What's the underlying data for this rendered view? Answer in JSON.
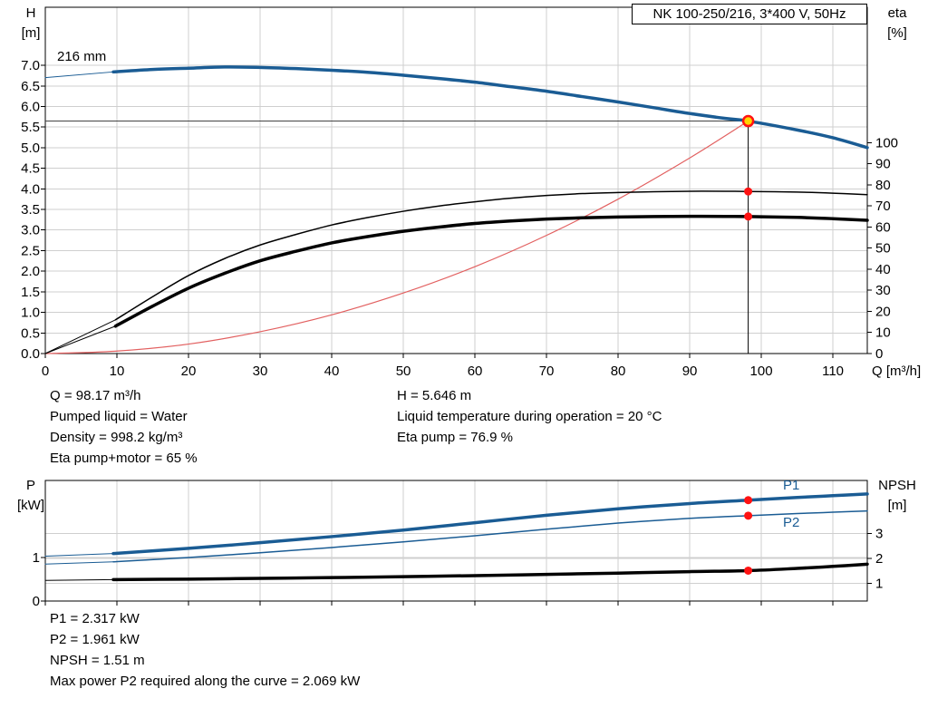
{
  "readouts_top": {
    "q": "Q = 98.17 m³/h",
    "pumped_liquid": "Pumped liquid = Water",
    "density": "Density = 998.2 kg/m³",
    "eta_pump_motor": "Eta pump+motor = 65 %",
    "h": "H = 5.646 m",
    "liquid_temp": "Liquid temperature during operation = 20 °C",
    "eta_pump": "Eta pump = 76.9 %"
  },
  "readouts_bottom": {
    "p1": "P1 = 2.317 kW",
    "p2": "P2 = 1.961 kW",
    "npsh": "NPSH = 1.51 m",
    "max_p2": "Max power P2 required along the curve = 2.069 kW"
  },
  "colors": {
    "curve_blue": "#1a5c94",
    "curve_black": "#000000",
    "duty_red": "#e26060",
    "dot_red": "#ff1212",
    "op_fill": "#ffd400",
    "grid": "#cfcfcf"
  },
  "chart_data": [
    {
      "type": "line",
      "title": "NK 100-250/216, 3*400 V, 50Hz",
      "impeller_label": "216 mm",
      "x_axis": {
        "label": "Q [m³/h]",
        "min": 0,
        "max": 114.8,
        "ticks": [
          0,
          10,
          20,
          30,
          40,
          50,
          60,
          70,
          80,
          90,
          100,
          110
        ]
      },
      "left_axis": {
        "title": "H",
        "unit": "[m]",
        "min": 0,
        "max": 8.41,
        "decimals": 1,
        "grid": true,
        "ticks": [
          0,
          0.5,
          1,
          1.5,
          2,
          2.5,
          3,
          3.5,
          4,
          4.5,
          5,
          5.5,
          6,
          6.5,
          7
        ]
      },
      "right_axis": {
        "title": "eta",
        "unit": "[%]",
        "min": 0,
        "max": 164.3,
        "decimals": 0,
        "grid": false,
        "ticks": [
          0,
          10,
          20,
          30,
          40,
          50,
          60,
          70,
          80,
          90,
          100
        ]
      },
      "operating_point": {
        "q": 98.17,
        "h": 5.646,
        "eta_pump": 76.9,
        "eta_pump_motor": 65
      },
      "series": [
        {
          "name": "head-curve-lead",
          "axis": "left",
          "color": "#1a5c94",
          "w": 1,
          "points": [
            [
              0,
              6.7
            ],
            [
              9.5,
              6.84
            ]
          ]
        },
        {
          "name": "head-curve",
          "axis": "left",
          "color": "#1a5c94",
          "w": 3.5,
          "points": [
            [
              9.5,
              6.84
            ],
            [
              15,
              6.9
            ],
            [
              20,
              6.93
            ],
            [
              25,
              6.96
            ],
            [
              30,
              6.95
            ],
            [
              35,
              6.92
            ],
            [
              40,
              6.88
            ],
            [
              45,
              6.83
            ],
            [
              50,
              6.76
            ],
            [
              55,
              6.68
            ],
            [
              60,
              6.59
            ],
            [
              65,
              6.48
            ],
            [
              70,
              6.37
            ],
            [
              75,
              6.24
            ],
            [
              80,
              6.11
            ],
            [
              85,
              5.97
            ],
            [
              90,
              5.83
            ],
            [
              95,
              5.71
            ],
            [
              98.17,
              5.646
            ],
            [
              105,
              5.43
            ],
            [
              110,
              5.24
            ],
            [
              114.8,
              5.0
            ]
          ]
        },
        {
          "name": "duty-curve",
          "axis": "left",
          "color": "#e26060",
          "w": 1.2,
          "points": [
            [
              0,
              0
            ],
            [
              10,
              0.06
            ],
            [
              20,
              0.23
            ],
            [
              30,
              0.53
            ],
            [
              40,
              0.94
            ],
            [
              50,
              1.47
            ],
            [
              60,
              2.11
            ],
            [
              70,
              2.87
            ],
            [
              80,
              3.75
            ],
            [
              90,
              4.75
            ],
            [
              98.17,
              5.646
            ]
          ]
        },
        {
          "name": "eta-pump-lead",
          "axis": "right",
          "color": "#000000",
          "w": 1,
          "points": [
            [
              0,
              0
            ],
            [
              9.8,
              16
            ]
          ]
        },
        {
          "name": "eta-pump-curve",
          "axis": "right",
          "color": "#000000",
          "w": 1.5,
          "points": [
            [
              9.8,
              16
            ],
            [
              15,
              27
            ],
            [
              20,
              37
            ],
            [
              25,
              45
            ],
            [
              30,
              51.5
            ],
            [
              35,
              56.5
            ],
            [
              40,
              61
            ],
            [
              45,
              64.5
            ],
            [
              50,
              67.5
            ],
            [
              55,
              70
            ],
            [
              60,
              72
            ],
            [
              65,
              73.7
            ],
            [
              70,
              75
            ],
            [
              75,
              75.9
            ],
            [
              80,
              76.4
            ],
            [
              85,
              76.8
            ],
            [
              90,
              77
            ],
            [
              95,
              77
            ],
            [
              98.17,
              76.9
            ],
            [
              105,
              76.6
            ],
            [
              110,
              76.1
            ],
            [
              114.8,
              75.4
            ]
          ]
        },
        {
          "name": "eta-pump-motor-lead",
          "axis": "right",
          "color": "#000000",
          "w": 1,
          "points": [
            [
              0,
              0
            ],
            [
              9.8,
              13
            ]
          ]
        },
        {
          "name": "eta-pump-motor-curve",
          "axis": "right",
          "color": "#000000",
          "w": 3.5,
          "points": [
            [
              9.8,
              13
            ],
            [
              15,
              22.5
            ],
            [
              20,
              31
            ],
            [
              25,
              38
            ],
            [
              30,
              44
            ],
            [
              35,
              48.5
            ],
            [
              40,
              52.5
            ],
            [
              45,
              55.5
            ],
            [
              50,
              58
            ],
            [
              55,
              60
            ],
            [
              60,
              61.7
            ],
            [
              65,
              62.9
            ],
            [
              70,
              63.8
            ],
            [
              75,
              64.4
            ],
            [
              80,
              64.8
            ],
            [
              85,
              65
            ],
            [
              90,
              65.1
            ],
            [
              95,
              65.05
            ],
            [
              98.17,
              65
            ],
            [
              105,
              64.6
            ],
            [
              110,
              64
            ],
            [
              114.8,
              63.2
            ]
          ]
        }
      ],
      "ref_lines": [
        {
          "dir": "h",
          "v": 5.646,
          "axis": "left",
          "x0": 0,
          "x1": 98.17,
          "color": "#444444",
          "w": 1
        },
        {
          "dir": "v",
          "x": 98.17,
          "axis": "left",
          "v0": 0,
          "v1": 5.646,
          "color": "#000000",
          "w": 1
        }
      ],
      "markers": [
        {
          "name": "operating-point",
          "x": 98.17,
          "v": 5.646,
          "axis": "left",
          "r": 5.5,
          "fill": "#ffd400",
          "stroke": "#ff1212",
          "sw": 2.5
        },
        {
          "name": "eta-pump-point",
          "x": 98.17,
          "v": 76.9,
          "axis": "right",
          "r": 4.5,
          "fill": "#ff1212"
        },
        {
          "name": "eta-pump-motor-point",
          "x": 98.17,
          "v": 65,
          "axis": "right",
          "r": 4.5,
          "fill": "#ff1212"
        }
      ]
    },
    {
      "type": "line",
      "x_axis": {
        "label": "",
        "min": 0,
        "max": 114.8,
        "ticks": [
          0,
          10,
          20,
          30,
          40,
          50,
          60,
          70,
          80,
          90,
          100,
          110
        ]
      },
      "left_axis": {
        "title": "P",
        "unit": "[kW]",
        "min": 0,
        "max": 2.77,
        "decimals": 0,
        "grid": true,
        "ticks": [
          0,
          1
        ]
      },
      "right_axis": {
        "title": "NPSH",
        "unit": "[m]",
        "min": 0.29,
        "max": 5.13,
        "decimals": 0,
        "grid": true,
        "ticks": [
          1,
          2,
          3
        ]
      },
      "labels": {
        "p1": "P1",
        "p2": "P2"
      },
      "operating_point": {
        "q": 98.17,
        "p1_kw": 2.317,
        "p2_kw": 1.961,
        "npsh_m": 1.51,
        "max_p2_kw": 2.069
      },
      "series": [
        {
          "name": "p1-curve-lead",
          "axis": "left",
          "color": "#1a5c94",
          "w": 1,
          "points": [
            [
              0,
              1.03
            ],
            [
              9.5,
              1.09
            ]
          ]
        },
        {
          "name": "p1-curve",
          "axis": "left",
          "color": "#1a5c94",
          "w": 3.5,
          "points": [
            [
              9.5,
              1.09
            ],
            [
              20,
              1.21
            ],
            [
              30,
              1.34
            ],
            [
              40,
              1.48
            ],
            [
              50,
              1.63
            ],
            [
              60,
              1.8
            ],
            [
              70,
              1.97
            ],
            [
              80,
              2.12
            ],
            [
              90,
              2.24
            ],
            [
              98.17,
              2.317
            ],
            [
              105,
              2.38
            ],
            [
              110,
              2.42
            ],
            [
              114.8,
              2.46
            ]
          ]
        },
        {
          "name": "p2-curve-lead",
          "axis": "left",
          "color": "#1a5c94",
          "w": 1,
          "points": [
            [
              0,
              0.85
            ],
            [
              9.5,
              0.9
            ]
          ]
        },
        {
          "name": "p2-curve",
          "axis": "left",
          "color": "#1a5c94",
          "w": 1.5,
          "points": [
            [
              9.5,
              0.9
            ],
            [
              20,
              1.0
            ],
            [
              30,
              1.11
            ],
            [
              40,
              1.23
            ],
            [
              50,
              1.36
            ],
            [
              60,
              1.5
            ],
            [
              70,
              1.65
            ],
            [
              80,
              1.79
            ],
            [
              90,
              1.9
            ],
            [
              98.17,
              1.961
            ],
            [
              105,
              2.01
            ],
            [
              110,
              2.04
            ],
            [
              114.8,
              2.069
            ]
          ]
        },
        {
          "name": "npsh-curve-lead",
          "axis": "right",
          "color": "#000000",
          "w": 1,
          "points": [
            [
              0,
              1.12
            ],
            [
              9.5,
              1.15
            ]
          ]
        },
        {
          "name": "npsh-curve",
          "axis": "right",
          "color": "#000000",
          "w": 3.5,
          "points": [
            [
              9.5,
              1.15
            ],
            [
              20,
              1.17
            ],
            [
              30,
              1.2
            ],
            [
              40,
              1.23
            ],
            [
              50,
              1.27
            ],
            [
              60,
              1.31
            ],
            [
              70,
              1.36
            ],
            [
              80,
              1.41
            ],
            [
              90,
              1.47
            ],
            [
              98.17,
              1.51
            ],
            [
              105,
              1.6
            ],
            [
              110,
              1.68
            ],
            [
              114.8,
              1.77
            ]
          ]
        }
      ],
      "ref_lines": [],
      "markers": [
        {
          "name": "p1-point",
          "x": 98.17,
          "v": 2.317,
          "axis": "left",
          "r": 4.5,
          "fill": "#ff1212"
        },
        {
          "name": "p2-point",
          "x": 98.17,
          "v": 1.961,
          "axis": "left",
          "r": 4.5,
          "fill": "#ff1212"
        },
        {
          "name": "npsh-point",
          "x": 98.17,
          "v": 1.51,
          "axis": "right",
          "r": 4.5,
          "fill": "#ff1212"
        }
      ]
    }
  ]
}
